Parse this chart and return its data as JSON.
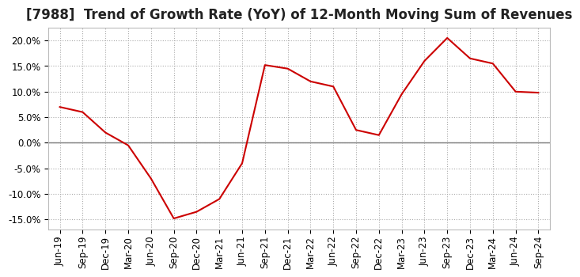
{
  "title": "[7988]  Trend of Growth Rate (YoY) of 12-Month Moving Sum of Revenues",
  "x_labels": [
    "Jun-19",
    "Sep-19",
    "Dec-19",
    "Mar-20",
    "Jun-20",
    "Sep-20",
    "Dec-20",
    "Mar-21",
    "Jun-21",
    "Sep-21",
    "Dec-21",
    "Mar-22",
    "Jun-22",
    "Sep-22",
    "Dec-22",
    "Mar-23",
    "Jun-23",
    "Sep-23",
    "Dec-23",
    "Mar-24",
    "Jun-24",
    "Sep-24"
  ],
  "y_values": [
    0.07,
    0.06,
    0.02,
    -0.005,
    -0.07,
    -0.148,
    -0.135,
    -0.11,
    -0.04,
    0.152,
    0.145,
    0.12,
    0.11,
    0.025,
    0.015,
    0.095,
    0.16,
    0.205,
    0.165,
    0.155,
    0.1,
    0.098
  ],
  "line_color": "#cc0000",
  "background_color": "#ffffff",
  "plot_bg_color": "#ffffff",
  "grid_color": "#aaaaaa",
  "zero_line_color": "#777777",
  "ylim": [
    -0.17,
    0.225
  ],
  "yticks": [
    -0.15,
    -0.1,
    -0.05,
    0.0,
    0.05,
    0.1,
    0.15,
    0.2
  ],
  "title_fontsize": 12,
  "tick_fontsize": 8.5
}
